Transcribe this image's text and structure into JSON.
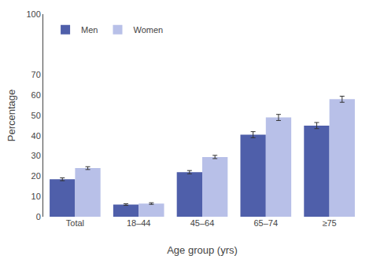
{
  "chart_data": {
    "type": "bar",
    "categories": [
      "Total",
      "18–44",
      "45–64",
      "65–74",
      "≥75"
    ],
    "series": [
      {
        "name": "Men",
        "color": "#4f5faa",
        "values": [
          18.5,
          6.0,
          22.0,
          40.5,
          45.0
        ],
        "errors": [
          0.7,
          0.4,
          0.8,
          1.5,
          1.5
        ]
      },
      {
        "name": "Women",
        "color": "#b8c0e8",
        "values": [
          24.0,
          6.5,
          29.5,
          49.0,
          58.0
        ],
        "errors": [
          0.7,
          0.4,
          0.8,
          1.5,
          1.5
        ]
      }
    ],
    "xlabel": "Age group (yrs)",
    "ylabel": "Percentage",
    "ylim": [
      0,
      100
    ],
    "yticks": [
      0,
      10,
      20,
      30,
      40,
      50,
      60,
      70,
      {
        "value": 80,
        "label": ""
      },
      {
        "value": 90,
        "label": ""
      },
      100
    ],
    "grid": false,
    "legend": "upper left"
  }
}
